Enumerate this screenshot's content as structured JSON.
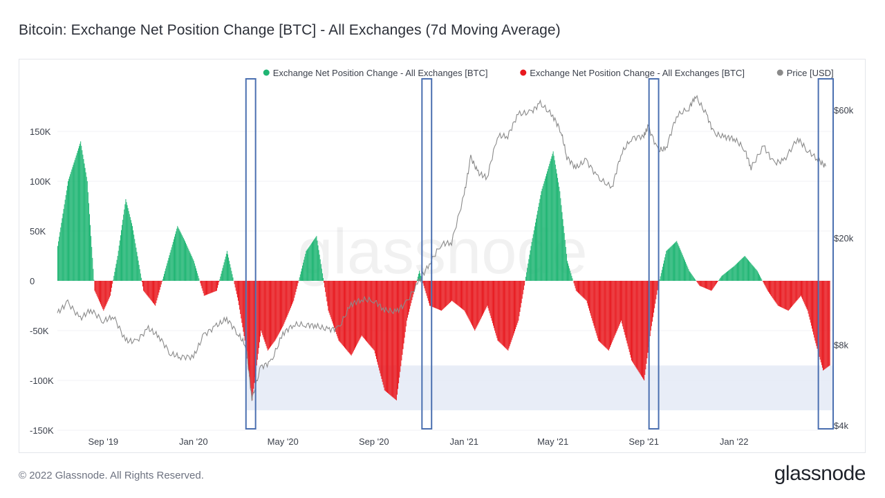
{
  "title": "Bitcoin: Exchange Net Position Change [BTC] - All Exchanges (7d Moving Average)",
  "footer": "© 2022 Glassnode. All Rights Reserved.",
  "logo": "glassnode",
  "watermark": "glassnode",
  "colors": {
    "positive": "#1fb573",
    "negative": "#e8191f",
    "price": "#8a8a8a",
    "highlight_box": "#4a6fb0",
    "band": "#e4eaf6"
  },
  "chart_data": {
    "type": "bar",
    "title": "Bitcoin: Exchange Net Position Change [BTC] - All Exchanges (7d Moving Average)",
    "legend": [
      {
        "label": "Exchange Net Position Change - All Exchanges [BTC]",
        "color": "#1fb573"
      },
      {
        "label": "Exchange Net Position Change - All Exchanges [BTC]",
        "color": "#e8191f"
      },
      {
        "label": "Price [USD]",
        "color": "#8a8a8a"
      }
    ],
    "legend_position": "top-right",
    "x_range": [
      "2019-07-01",
      "2022-05-15"
    ],
    "x_ticks": [
      {
        "date": "2019-09-01",
        "label": "Sep '19"
      },
      {
        "date": "2020-01-01",
        "label": "Jan '20"
      },
      {
        "date": "2020-05-01",
        "label": "May '20"
      },
      {
        "date": "2020-09-01",
        "label": "Sep '20"
      },
      {
        "date": "2021-01-01",
        "label": "Jan '21"
      },
      {
        "date": "2021-05-01",
        "label": "May '21"
      },
      {
        "date": "2021-09-01",
        "label": "Sep '21"
      },
      {
        "date": "2022-01-01",
        "label": "Jan '22"
      }
    ],
    "y_left": {
      "ticks": [
        150000,
        100000,
        50000,
        0,
        -50000,
        -100000,
        -150000
      ],
      "labels": [
        "150K",
        "100K",
        "50K",
        "0",
        "-50K",
        "-100K",
        "-150K"
      ],
      "range": [
        -150000,
        165000
      ]
    },
    "y_right": {
      "scale": "log",
      "ticks": [
        60000,
        20000,
        8000,
        4000
      ],
      "labels": [
        "$60k",
        "$20k",
        "$8k",
        "$4k"
      ],
      "range": [
        4000,
        78000
      ]
    },
    "net_position_change": {
      "x": [
        "2019-07-01",
        "2019-07-15",
        "2019-08-01",
        "2019-08-10",
        "2019-08-20",
        "2019-09-01",
        "2019-09-10",
        "2019-09-20",
        "2019-10-01",
        "2019-10-10",
        "2019-10-25",
        "2019-11-10",
        "2019-11-25",
        "2019-12-10",
        "2019-12-20",
        "2020-01-01",
        "2020-01-15",
        "2020-02-01",
        "2020-02-15",
        "2020-03-01",
        "2020-03-10",
        "2020-03-20",
        "2020-04-01",
        "2020-04-10",
        "2020-04-20",
        "2020-05-01",
        "2020-05-15",
        "2020-06-01",
        "2020-06-15",
        "2020-07-01",
        "2020-07-15",
        "2020-08-01",
        "2020-08-15",
        "2020-09-01",
        "2020-09-15",
        "2020-10-01",
        "2020-10-15",
        "2020-11-01",
        "2020-11-15",
        "2020-12-01",
        "2020-12-15",
        "2021-01-01",
        "2021-01-15",
        "2021-02-01",
        "2021-02-15",
        "2021-03-01",
        "2021-03-15",
        "2021-04-01",
        "2021-04-15",
        "2021-05-01",
        "2021-05-10",
        "2021-05-20",
        "2021-06-01",
        "2021-06-15",
        "2021-07-01",
        "2021-07-15",
        "2021-08-01",
        "2021-08-15",
        "2021-09-01",
        "2021-09-10",
        "2021-09-20",
        "2021-10-01",
        "2021-10-15",
        "2021-11-01",
        "2021-11-15",
        "2021-12-01",
        "2021-12-15",
        "2022-01-01",
        "2022-01-15",
        "2022-02-01",
        "2022-02-15",
        "2022-03-01",
        "2022-03-15",
        "2022-04-01",
        "2022-04-10",
        "2022-04-20",
        "2022-05-01",
        "2022-05-10"
      ],
      "y": [
        35000,
        100000,
        140000,
        100000,
        -10000,
        -30000,
        -15000,
        25000,
        82000,
        55000,
        -10000,
        -25000,
        15000,
        55000,
        40000,
        20000,
        -15000,
        -10000,
        30000,
        -20000,
        -60000,
        -120000,
        -50000,
        -70000,
        -60000,
        -45000,
        -20000,
        30000,
        45000,
        -30000,
        -60000,
        -75000,
        -55000,
        -70000,
        -110000,
        -120000,
        -40000,
        10000,
        -25000,
        -30000,
        -20000,
        -30000,
        -50000,
        -25000,
        -60000,
        -70000,
        -40000,
        35000,
        90000,
        130000,
        90000,
        20000,
        -10000,
        -20000,
        -60000,
        -70000,
        -40000,
        -80000,
        -100000,
        -50000,
        -5000,
        30000,
        40000,
        10000,
        -5000,
        -10000,
        5000,
        15000,
        25000,
        10000,
        -10000,
        -25000,
        -30000,
        -15000,
        -30000,
        -60000,
        -90000,
        -85000
      ]
    },
    "price_usd": {
      "x": [
        "2019-07-01",
        "2019-07-15",
        "2019-08-01",
        "2019-08-15",
        "2019-09-01",
        "2019-09-15",
        "2019-10-01",
        "2019-10-15",
        "2019-11-01",
        "2019-11-15",
        "2019-12-01",
        "2019-12-15",
        "2020-01-01",
        "2020-01-15",
        "2020-02-01",
        "2020-02-15",
        "2020-03-01",
        "2020-03-12",
        "2020-03-20",
        "2020-04-01",
        "2020-04-15",
        "2020-05-01",
        "2020-05-15",
        "2020-06-01",
        "2020-06-15",
        "2020-07-01",
        "2020-07-15",
        "2020-08-01",
        "2020-08-15",
        "2020-09-01",
        "2020-09-15",
        "2020-10-01",
        "2020-10-15",
        "2020-11-01",
        "2020-11-15",
        "2020-12-01",
        "2020-12-15",
        "2021-01-01",
        "2021-01-10",
        "2021-01-20",
        "2021-02-01",
        "2021-02-15",
        "2021-03-01",
        "2021-03-15",
        "2021-04-01",
        "2021-04-14",
        "2021-05-01",
        "2021-05-12",
        "2021-05-20",
        "2021-06-01",
        "2021-06-15",
        "2021-07-01",
        "2021-07-20",
        "2021-08-01",
        "2021-08-15",
        "2021-09-01",
        "2021-09-07",
        "2021-09-20",
        "2021-10-01",
        "2021-10-15",
        "2021-11-01",
        "2021-11-10",
        "2021-11-25",
        "2021-12-05",
        "2021-12-20",
        "2022-01-01",
        "2022-01-15",
        "2022-01-24",
        "2022-02-10",
        "2022-02-24",
        "2022-03-10",
        "2022-03-28",
        "2022-04-10",
        "2022-04-25",
        "2022-05-05"
      ],
      "y": [
        10500,
        11500,
        10000,
        10800,
        9800,
        10200,
        8300,
        8200,
        9200,
        8600,
        7400,
        7200,
        7200,
        8700,
        9400,
        10000,
        8800,
        7900,
        5000,
        6600,
        6900,
        8800,
        9500,
        9500,
        9400,
        9100,
        9200,
        11300,
        11800,
        11700,
        10800,
        10600,
        11500,
        13800,
        16000,
        19000,
        19200,
        29000,
        40000,
        35000,
        33500,
        48000,
        48000,
        58000,
        58800,
        63500,
        57000,
        50000,
        40000,
        36500,
        39000,
        33500,
        30800,
        41000,
        47000,
        48000,
        52000,
        42500,
        43000,
        57000,
        61000,
        67500,
        57500,
        49000,
        47500,
        47000,
        43000,
        36500,
        44000,
        38000,
        39000,
        47000,
        42500,
        39000,
        37000
      ]
    },
    "highlight_periods": [
      {
        "start": "2020-03-12",
        "end": "2020-03-25"
      },
      {
        "start": "2020-11-05",
        "end": "2020-11-18"
      },
      {
        "start": "2021-09-08",
        "end": "2021-09-21"
      },
      {
        "start": "2022-04-25",
        "end": "2022-05-15"
      }
    ],
    "highlight_band_btc": [
      -130000,
      -85000
    ]
  }
}
